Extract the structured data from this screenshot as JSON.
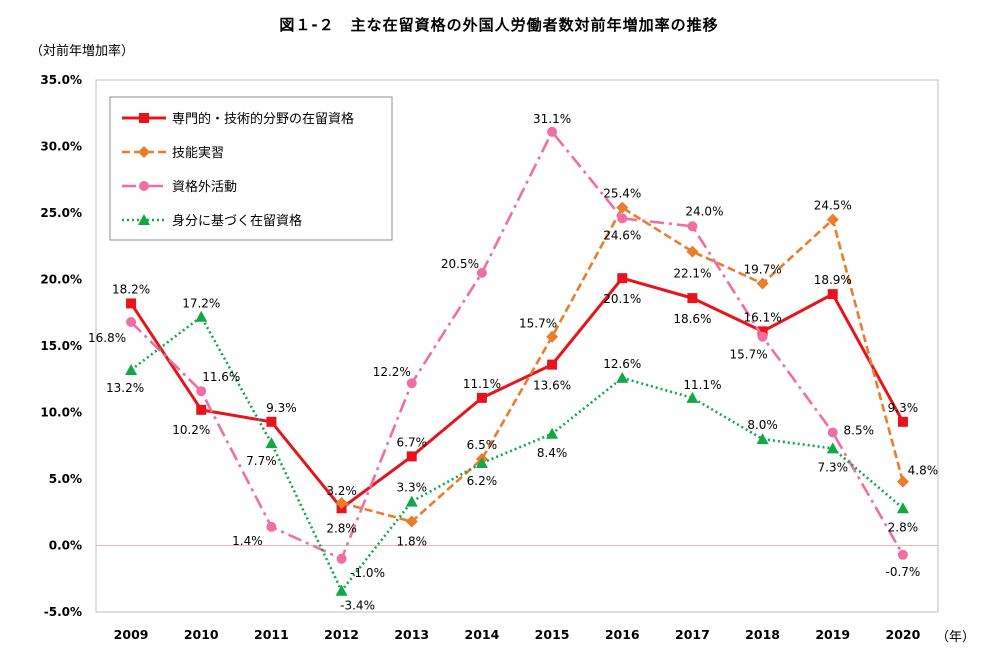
{
  "title": "図１-２　主な在留資格の外国人労働者数対前年増加率の推移",
  "y_unit": "（対前年増加率）",
  "x_unit": "（年）",
  "chart_data": {
    "type": "line",
    "categories": [
      "2009",
      "2010",
      "2011",
      "2012",
      "2013",
      "2014",
      "2015",
      "2016",
      "2017",
      "2018",
      "2019",
      "2020"
    ],
    "ylim": [
      -5,
      35
    ],
    "yticks": [
      -5,
      0,
      5,
      10,
      15,
      20,
      25,
      30,
      35
    ],
    "ytick_labels": [
      "-5.0%",
      "0.0%",
      "5.0%",
      "10.0%",
      "15.0%",
      "20.0%",
      "25.0%",
      "30.0%",
      "35.0%"
    ],
    "legend_position": "top-left",
    "grid": false,
    "series": [
      {
        "name": "専門的・技術的分野の在留資格",
        "color": "#e8141b",
        "marker": "square",
        "dash": "solid",
        "values": [
          18.2,
          10.2,
          9.3,
          2.8,
          6.7,
          11.1,
          13.6,
          20.1,
          18.6,
          16.1,
          18.9,
          9.3
        ],
        "labels": [
          "18.2%",
          "10.2%",
          "9.3%",
          "2.8%",
          "6.7%",
          "11.1%",
          "13.6%",
          "20.1%",
          "18.6%",
          "16.1%",
          "18.9%",
          "9.3%"
        ]
      },
      {
        "name": "技能実習",
        "color": "#e97d2c",
        "marker": "diamond",
        "dash": "dash",
        "values": [
          null,
          null,
          null,
          3.2,
          1.8,
          6.5,
          15.7,
          25.4,
          22.1,
          19.7,
          24.5,
          4.8
        ],
        "labels": [
          null,
          null,
          null,
          "3.2%",
          "1.8%",
          "6.5%",
          "15.7%",
          "25.4%",
          "22.1%",
          "19.7%",
          "24.5%",
          "4.8%"
        ]
      },
      {
        "name": "資格外活動",
        "color": "#ef6fa5",
        "marker": "circle",
        "dash": "dashdot",
        "values": [
          16.8,
          11.6,
          1.4,
          -1.0,
          12.2,
          20.5,
          31.1,
          24.6,
          24.0,
          15.7,
          8.5,
          -0.7
        ],
        "labels": [
          "16.8%",
          "11.6%",
          "1.4%",
          "-1.0%",
          "12.2%",
          "20.5%",
          "31.1%",
          "24.6%",
          "24.0%",
          "15.7%",
          "8.5%",
          "-0.7%"
        ]
      },
      {
        "name": "身分に基づく在留資格",
        "color": "#12a84a",
        "marker": "triangle",
        "dash": "dot",
        "values": [
          13.2,
          17.2,
          7.7,
          -3.4,
          3.3,
          6.2,
          8.4,
          12.6,
          11.1,
          8.0,
          7.3,
          2.8
        ],
        "labels": [
          "13.2%",
          "17.2%",
          "7.7%",
          "-3.4%",
          "3.3%",
          "6.2%",
          "8.4%",
          "12.6%",
          "11.1%",
          "8.0%",
          "7.3%",
          "2.8%"
        ]
      }
    ]
  }
}
